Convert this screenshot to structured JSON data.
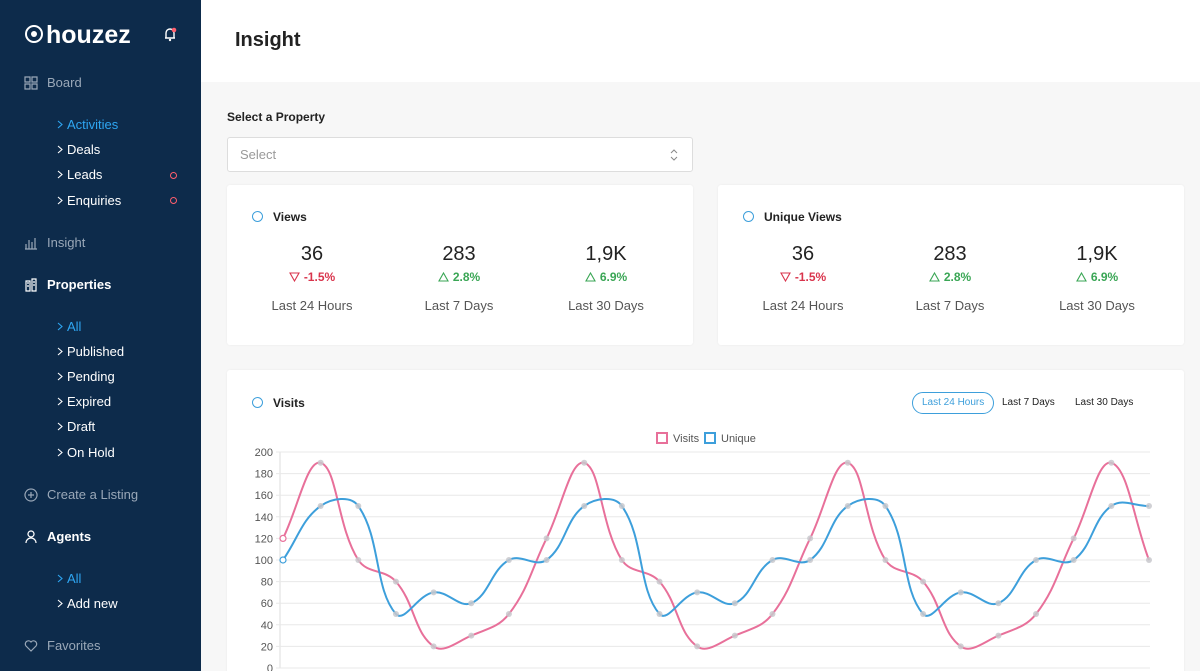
{
  "sidebar": {
    "brand": "houzez",
    "menu": [
      {
        "label": "Board",
        "children": [
          {
            "label": "Activities",
            "active": true
          },
          {
            "label": "Deals"
          },
          {
            "label": "Leads",
            "badge": true
          },
          {
            "label": "Enquiries",
            "badge": true
          }
        ]
      },
      {
        "label": "Insight"
      },
      {
        "label": "Properties",
        "selected": true,
        "children": [
          {
            "label": "All",
            "active": true
          },
          {
            "label": "Published"
          },
          {
            "label": "Pending"
          },
          {
            "label": "Expired"
          },
          {
            "label": "Draft"
          },
          {
            "label": "On Hold"
          }
        ]
      },
      {
        "label": "Create a Listing"
      },
      {
        "label": "Agents",
        "selected": true,
        "children": [
          {
            "label": "All",
            "active": true
          },
          {
            "label": "Add new"
          }
        ]
      },
      {
        "label": "Favorites"
      }
    ]
  },
  "header": {
    "title": "Insight"
  },
  "property_select": {
    "label": "Select a Property",
    "placeholder": "Select"
  },
  "stat_cards": [
    {
      "title": "Views",
      "stats": [
        {
          "value": "36",
          "change": "-1.5%",
          "period": "Last 24 Hours"
        },
        {
          "value": "283",
          "change": "2.8%",
          "period": "Last 7 Days"
        },
        {
          "value": "1,9K",
          "change": "6.9%",
          "period": "Last 30 Days"
        }
      ]
    },
    {
      "title": "Unique Views",
      "stats": [
        {
          "value": "36",
          "change": "-1.5%",
          "period": "Last 24 Hours"
        },
        {
          "value": "283",
          "change": "2.8%",
          "period": "Last 7 Days"
        },
        {
          "value": "1,9K",
          "change": "6.9%",
          "period": "Last 30 Days"
        }
      ]
    }
  ],
  "visits": {
    "title": "Visits",
    "ranges": [
      "Last 24 Hours",
      "Last 7 Days",
      "Last 30 Days"
    ],
    "active_range": 0
  },
  "chart_data": {
    "type": "line",
    "series": [
      {
        "name": "Visits",
        "color": "#e8709a",
        "values": [
          120,
          190,
          100,
          80,
          20,
          30,
          50,
          120,
          190,
          100,
          80,
          20,
          30,
          50,
          120,
          190,
          100,
          80,
          20,
          30,
          50,
          120,
          190,
          100
        ]
      },
      {
        "name": "Unique",
        "color": "#3d9fdb",
        "values": [
          100,
          150,
          150,
          50,
          70,
          60,
          100,
          100,
          150,
          150,
          50,
          70,
          60,
          100,
          100,
          150,
          150,
          50,
          70,
          60,
          100,
          100,
          150,
          150
        ]
      }
    ],
    "ylim": [
      0,
      200
    ],
    "yticks": [
      0,
      20,
      40,
      60,
      80,
      100,
      120,
      140,
      160,
      180,
      200
    ],
    "grid": true,
    "legend": "top"
  }
}
